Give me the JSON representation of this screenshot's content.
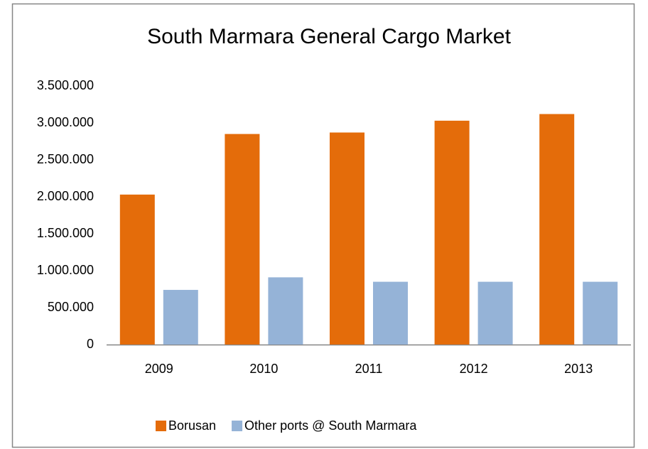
{
  "chart_data": {
    "type": "bar",
    "title": "South Marmara General Cargo Market",
    "categories": [
      "2009",
      "2010",
      "2011",
      "2012",
      "2013"
    ],
    "series": [
      {
        "name": "Borusan",
        "color": "#e46c0a",
        "values": [
          2030000,
          2850000,
          2870000,
          3030000,
          3120000
        ]
      },
      {
        "name": "Other ports @ South Marmara",
        "color": "#95b3d7",
        "values": [
          740000,
          910000,
          850000,
          850000,
          850000
        ]
      }
    ],
    "ylim": [
      0,
      3500000
    ],
    "yticks": [
      0,
      {
        "value": 500000,
        "label": "500.000"
      },
      {
        "value": 1000000,
        "label": "1.000.000"
      },
      {
        "value": 1500000,
        "label": "1.500.000"
      },
      {
        "value": 2000000,
        "label": "2.000.000"
      },
      {
        "value": 2500000,
        "label": "2.500.000"
      },
      {
        "value": 3000000,
        "label": "3.000.000"
      },
      {
        "value": 3500000,
        "label": "3.500.000"
      }
    ],
    "grid": false,
    "legend": "bottom"
  }
}
